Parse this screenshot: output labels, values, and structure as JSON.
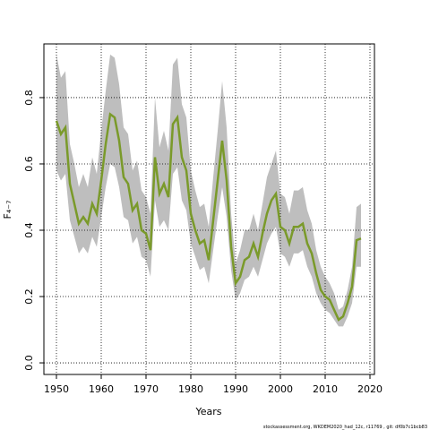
{
  "chart_data": {
    "type": "line",
    "x_label": "Years",
    "y_label": "F₄₋₇",
    "footnote": "stockassessment.org, WKDEM2020_had_12c, r11769 , git: df0b7c1bcb83",
    "x": [
      1950,
      1951,
      1952,
      1953,
      1954,
      1955,
      1956,
      1957,
      1958,
      1959,
      1960,
      1961,
      1962,
      1963,
      1964,
      1965,
      1966,
      1967,
      1968,
      1969,
      1970,
      1971,
      1972,
      1973,
      1974,
      1975,
      1976,
      1977,
      1978,
      1979,
      1980,
      1981,
      1982,
      1983,
      1984,
      1985,
      1986,
      1987,
      1988,
      1989,
      1990,
      1991,
      1992,
      1993,
      1994,
      1995,
      1996,
      1997,
      1998,
      1999,
      2000,
      2001,
      2002,
      2003,
      2004,
      2005,
      2006,
      2007,
      2008,
      2009,
      2010,
      2011,
      2012,
      2013,
      2014,
      2015,
      2016,
      2017,
      2018
    ],
    "band": {
      "color": "#bebebe",
      "high": [
        0.93,
        0.86,
        0.88,
        0.66,
        0.6,
        0.53,
        0.57,
        0.53,
        0.62,
        0.57,
        0.7,
        0.82,
        0.93,
        0.92,
        0.84,
        0.71,
        0.69,
        0.58,
        0.61,
        0.52,
        0.5,
        0.45,
        0.8,
        0.65,
        0.7,
        0.64,
        0.9,
        0.92,
        0.78,
        0.74,
        0.58,
        0.52,
        0.47,
        0.48,
        0.41,
        0.56,
        0.7,
        0.85,
        0.71,
        0.45,
        0.3,
        0.34,
        0.4,
        0.4,
        0.45,
        0.4,
        0.48,
        0.56,
        0.6,
        0.64,
        0.51,
        0.5,
        0.45,
        0.52,
        0.52,
        0.53,
        0.46,
        0.42,
        0.34,
        0.29,
        0.26,
        0.24,
        0.21,
        0.16,
        0.17,
        0.22,
        0.29,
        0.47,
        0.48
      ],
      "low": [
        0.58,
        0.55,
        0.57,
        0.43,
        0.38,
        0.33,
        0.35,
        0.33,
        0.38,
        0.35,
        0.44,
        0.53,
        0.6,
        0.59,
        0.53,
        0.44,
        0.43,
        0.36,
        0.38,
        0.32,
        0.31,
        0.26,
        0.49,
        0.41,
        0.43,
        0.4,
        0.57,
        0.59,
        0.49,
        0.46,
        0.36,
        0.32,
        0.28,
        0.29,
        0.24,
        0.34,
        0.44,
        0.53,
        0.44,
        0.28,
        0.19,
        0.21,
        0.25,
        0.26,
        0.29,
        0.26,
        0.31,
        0.36,
        0.39,
        0.41,
        0.33,
        0.32,
        0.29,
        0.33,
        0.33,
        0.34,
        0.29,
        0.26,
        0.21,
        0.18,
        0.16,
        0.15,
        0.13,
        0.11,
        0.11,
        0.14,
        0.18,
        0.29,
        0.29
      ]
    },
    "series": [
      {
        "color": "#7a9a2a",
        "values": [
          0.73,
          0.69,
          0.71,
          0.54,
          0.48,
          0.42,
          0.44,
          0.42,
          0.48,
          0.45,
          0.55,
          0.66,
          0.75,
          0.74,
          0.67,
          0.56,
          0.54,
          0.46,
          0.48,
          0.4,
          0.39,
          0.34,
          0.62,
          0.51,
          0.54,
          0.5,
          0.72,
          0.74,
          0.62,
          0.58,
          0.45,
          0.4,
          0.36,
          0.37,
          0.31,
          0.43,
          0.55,
          0.67,
          0.55,
          0.35,
          0.24,
          0.26,
          0.31,
          0.32,
          0.36,
          0.32,
          0.39,
          0.45,
          0.49,
          0.51,
          0.41,
          0.4,
          0.36,
          0.41,
          0.41,
          0.42,
          0.36,
          0.33,
          0.27,
          0.22,
          0.2,
          0.19,
          0.16,
          0.13,
          0.14,
          0.18,
          0.23,
          0.37,
          0.375
        ]
      }
    ],
    "xlim": [
      1947.2,
      2021
    ],
    "ylim": [
      -0.035,
      0.962
    ],
    "xticks": [
      1950,
      1960,
      1970,
      1980,
      1990,
      2000,
      2010,
      2020
    ],
    "yticks": [
      {
        "value": 0,
        "label": "0.0"
      },
      {
        "value": 0.2,
        "label": "0.2"
      },
      {
        "value": 0.4,
        "label": "0.4"
      },
      {
        "value": 0.6,
        "label": "0.6"
      },
      {
        "value": 0.8,
        "label": "0.8"
      }
    ],
    "grid": true
  }
}
